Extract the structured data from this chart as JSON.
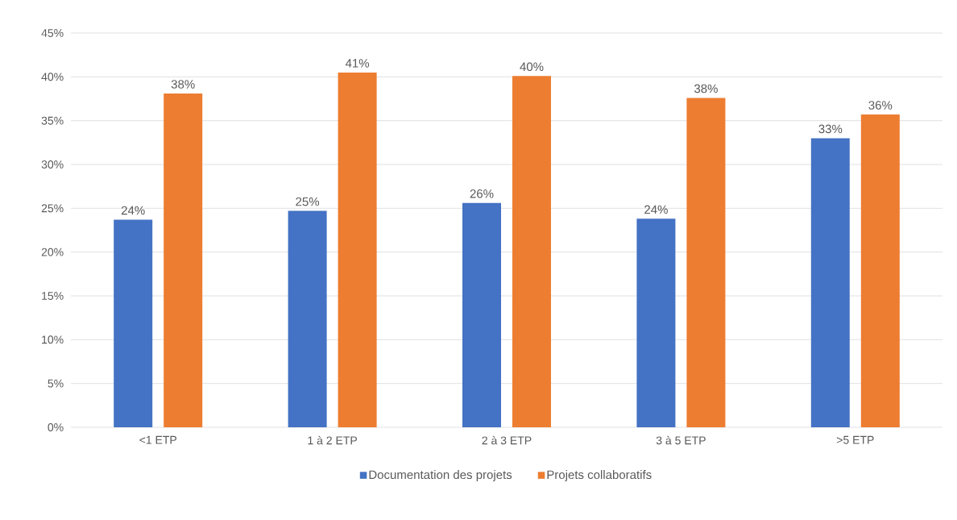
{
  "chart_data": {
    "type": "bar",
    "categories": [
      "<1 ETP",
      "1 à 2 ETP",
      "2 à 3 ETP",
      "3 à 5 ETP",
      ">5 ETP"
    ],
    "series": [
      {
        "name": "Documentation des projets",
        "color": "#4472c4",
        "values": [
          23.7,
          24.7,
          25.6,
          23.8,
          33.0
        ],
        "value_labels": [
          "24%",
          "25%",
          "26%",
          "24%",
          "33%"
        ]
      },
      {
        "name": "Projets collaboratifs",
        "color": "#ed7d31",
        "values": [
          38.1,
          40.5,
          40.1,
          37.6,
          35.7
        ],
        "value_labels": [
          "38%",
          "41%",
          "40%",
          "38%",
          "36%"
        ]
      }
    ],
    "ylim": [
      0,
      45
    ],
    "yticks": [
      {
        "value": 0,
        "label": "0%"
      },
      {
        "value": 5,
        "label": "5%"
      },
      {
        "value": 10,
        "label": "10%"
      },
      {
        "value": 15,
        "label": "15%"
      },
      {
        "value": 20,
        "label": "20%"
      },
      {
        "value": 25,
        "label": "25%"
      },
      {
        "value": 30,
        "label": "30%"
      },
      {
        "value": 35,
        "label": "35%"
      },
      {
        "value": 40,
        "label": "40%"
      },
      {
        "value": 45,
        "label": "45%"
      }
    ],
    "grid": "y",
    "legend": "bottom"
  }
}
